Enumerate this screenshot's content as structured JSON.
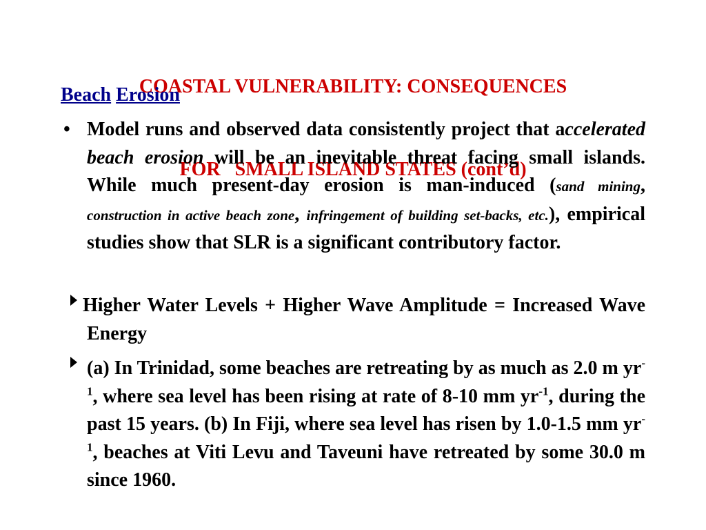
{
  "title": {
    "line1": "COASTAL VULNERABILITY: CONSEQUENCES",
    "line2": "FOR   SMALL ISLAND STATES (cont’d)"
  },
  "heading": {
    "word1": "Beach",
    "word2": "Erosion"
  },
  "bullets": {
    "b1": {
      "marker": "•",
      "t1": "Model runs and observed data consistently project that a",
      "t2": "ccelerated beach erosion",
      "t3": " will be an inevitable threat facing small islands. While much present-day erosion is man-induced (",
      "t4": "sand mining",
      "t5": ", ",
      "t6": "construction in active beach zone",
      "t7": ", ",
      "t8": "infringement of building set-backs, etc.",
      "t9": "), empirical studies show that SLR is a significant  contributory factor."
    },
    "b2": {
      "text": "Higher Water Levels + Higher Wave Amplitude = Increased Wave Energy"
    },
    "b3": {
      "t1": " (a) In Trinidad, some beaches are retreating by as much as 2.0 m yr",
      "sup1": "-1",
      "t2": ", where sea level has been rising at rate of 8-10 mm yr",
      "sup2": "-1",
      "t3": ", during the past 15 years. (b) In Fiji, where sea level has risen by 1.0-1.5 mm yr",
      "sup3": "-1",
      "t4": ", beaches at Viti Levu and Taveuni have retreated by some 30.0 m since 1960."
    }
  },
  "colors": {
    "title": "#cc0000",
    "heading": "#00008b",
    "body": "#000000"
  }
}
